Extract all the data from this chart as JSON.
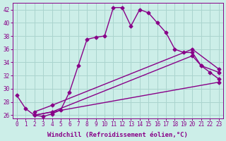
{
  "xlabel": "Windchill (Refroidissement éolien,°C)",
  "background_color": "#cceee8",
  "grid_color": "#aad4ce",
  "line_color": "#880088",
  "xlim": [
    -0.5,
    23.5
  ],
  "ylim": [
    25.5,
    43
  ],
  "xticks": [
    0,
    1,
    2,
    3,
    4,
    5,
    6,
    7,
    8,
    9,
    10,
    11,
    12,
    13,
    14,
    15,
    16,
    17,
    18,
    19,
    20,
    21,
    22,
    23
  ],
  "yticks": [
    26,
    28,
    30,
    32,
    34,
    36,
    38,
    40,
    42
  ],
  "series1_x": [
    0,
    1,
    2,
    3,
    4,
    5,
    6,
    7,
    8,
    9,
    10,
    11,
    12,
    13,
    14,
    15,
    16,
    17,
    18,
    19,
    20,
    21,
    22,
    23
  ],
  "series1_y": [
    29.0,
    27.0,
    26.0,
    25.8,
    26.2,
    26.8,
    29.5,
    33.5,
    37.5,
    37.8,
    38.0,
    42.3,
    42.3,
    39.5,
    42.0,
    41.5,
    40.0,
    38.5,
    36.0,
    35.5,
    35.5,
    33.5,
    32.5,
    31.5
  ],
  "series2_x": [
    2,
    4,
    23
  ],
  "series2_y": [
    26.0,
    26.5,
    31.0
  ],
  "series3_x": [
    2,
    4,
    20,
    21,
    23
  ],
  "series3_y": [
    26.0,
    26.5,
    35.0,
    33.5,
    32.5
  ],
  "series4_x": [
    2,
    4,
    20,
    23
  ],
  "series4_y": [
    26.5,
    27.5,
    36.0,
    33.0
  ],
  "marker": "D",
  "markersize": 2.5,
  "linewidth": 1.0,
  "tick_fontsize": 5.5,
  "label_fontsize": 6.5
}
